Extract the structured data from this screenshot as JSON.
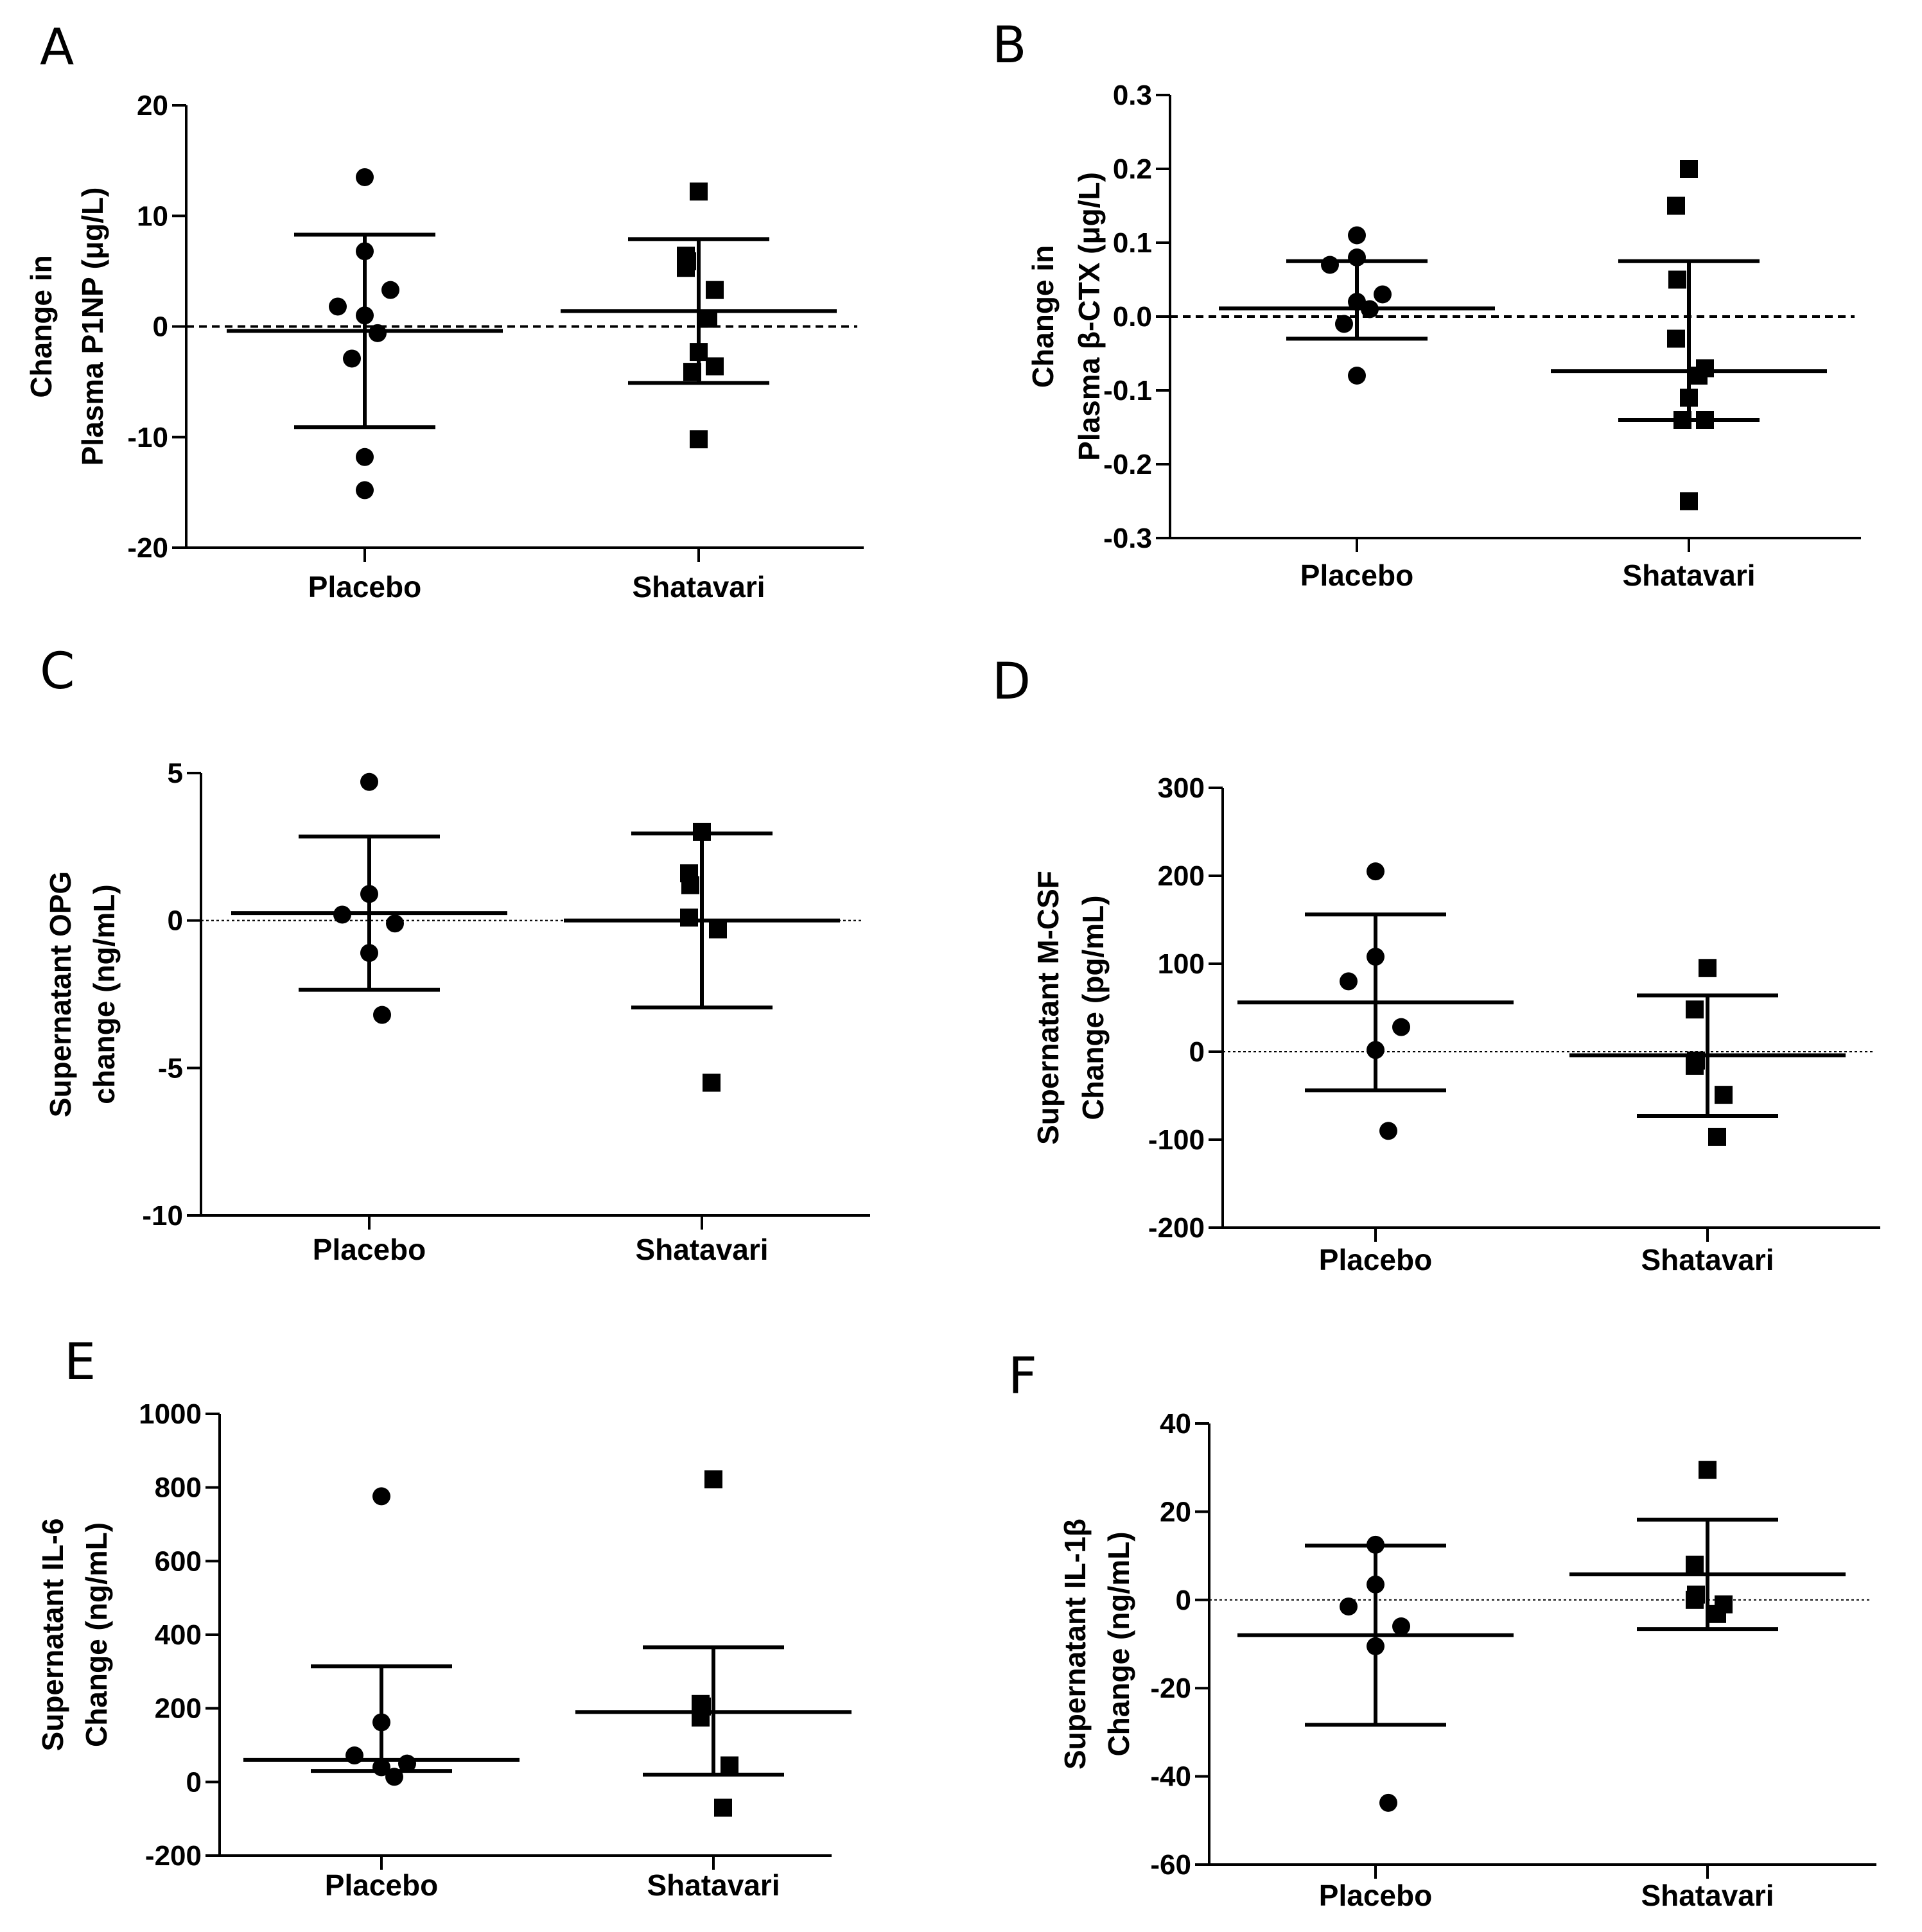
{
  "chart_data": [
    {
      "panel": "A",
      "type": "scatter",
      "ylabel_lines": [
        "Change in",
        "Plasma P1NP (μg/L)"
      ],
      "categories": [
        "Placebo",
        "Shatavari"
      ],
      "ylim": [
        -20,
        20
      ],
      "yticks": [
        -20,
        -10,
        0,
        10,
        20
      ],
      "ytick_labels": [
        "-20",
        "-10",
        "0",
        "10",
        "20"
      ],
      "zero_line": "thick-dashed",
      "series": [
        {
          "category": "Placebo",
          "marker": "circle",
          "values": [
            13.5,
            6.8,
            1.8,
            3.3,
            1.0,
            -0.6,
            -2.9,
            -11.8,
            -14.8
          ],
          "mean": -0.4,
          "error_upper": 8.3,
          "error_lower": -9.1
        },
        {
          "category": "Shatavari",
          "marker": "square",
          "values": [
            12.2,
            6.4,
            5.9,
            5.3,
            3.3,
            0.7,
            -2.3,
            -3.6,
            -4.1,
            -10.2
          ],
          "mean": 1.4,
          "error_upper": 7.9,
          "error_lower": -5.1
        }
      ]
    },
    {
      "panel": "B",
      "type": "scatter",
      "ylabel_lines": [
        "Change in",
        "Plasma β-CTX (μg/L)"
      ],
      "categories": [
        "Placebo",
        "Shatavari"
      ],
      "ylim": [
        -0.3,
        0.3
      ],
      "yticks": [
        -0.3,
        -0.2,
        -0.1,
        0.0,
        0.1,
        0.2,
        0.3
      ],
      "ytick_labels": [
        "-0.3",
        "-0.2",
        "-0.1",
        "0.0",
        "0.1",
        "0.2",
        "0.3"
      ],
      "zero_line": "thick-dashed",
      "series": [
        {
          "category": "Placebo",
          "marker": "circle",
          "values": [
            0.11,
            0.08,
            0.07,
            0.03,
            0.02,
            0.01,
            -0.01,
            -0.08
          ],
          "mean": 0.011,
          "error_upper": 0.075,
          "error_lower": -0.03
        },
        {
          "category": "Shatavari",
          "marker": "square",
          "values": [
            0.2,
            0.15,
            0.05,
            -0.03,
            -0.07,
            -0.08,
            -0.11,
            -0.14,
            -0.14,
            -0.25
          ],
          "mean": -0.074,
          "error_upper": 0.075,
          "error_lower": -0.14
        }
      ]
    },
    {
      "panel": "C",
      "type": "scatter",
      "ylabel_lines": [
        "Supernatant OPG",
        "change (ng/mL)"
      ],
      "categories": [
        "Placebo",
        "Shatavari"
      ],
      "ylim": [
        -10,
        5
      ],
      "yticks": [
        -10,
        -5,
        0,
        5
      ],
      "ytick_labels": [
        "-10",
        "-5",
        "0",
        "5"
      ],
      "zero_line": "thin-dotted",
      "series": [
        {
          "category": "Placebo",
          "marker": "circle",
          "values": [
            4.7,
            0.9,
            0.2,
            -0.1,
            -1.1,
            -3.2
          ],
          "mean": 0.25,
          "error_upper": 2.85,
          "error_lower": -2.35
        },
        {
          "category": "Shatavari",
          "marker": "square",
          "values": [
            3.0,
            1.6,
            1.2,
            0.1,
            -0.3,
            -5.5
          ],
          "mean": 0.0,
          "error_upper": 2.95,
          "error_lower": -2.95
        }
      ]
    },
    {
      "panel": "D",
      "type": "scatter",
      "ylabel_lines": [
        "Supernatant M-CSF",
        "Change (pg/mL)"
      ],
      "categories": [
        "Placebo",
        "Shatavari"
      ],
      "ylim": [
        -200,
        300
      ],
      "yticks": [
        -200,
        -100,
        0,
        100,
        200,
        300
      ],
      "ytick_labels": [
        "-200",
        "-100",
        "0",
        "100",
        "200",
        "300"
      ],
      "zero_line": "thin-dotted",
      "series": [
        {
          "category": "Placebo",
          "marker": "circle",
          "values": [
            205,
            108,
            80,
            28,
            2,
            -90
          ],
          "mean": 56,
          "error_upper": 156,
          "error_lower": -44
        },
        {
          "category": "Shatavari",
          "marker": "square",
          "values": [
            95,
            48,
            -10,
            -16,
            -49,
            -97
          ],
          "mean": -4,
          "error_upper": 64,
          "error_lower": -73
        }
      ]
    },
    {
      "panel": "E",
      "type": "scatter",
      "ylabel_lines": [
        "Supernatant IL-6",
        "Change (ng/mL)"
      ],
      "categories": [
        "Placebo",
        "Shatavari"
      ],
      "ylim": [
        -200,
        1000
      ],
      "yticks": [
        -200,
        0,
        200,
        400,
        600,
        800,
        1000
      ],
      "ytick_labels": [
        "-200",
        "0",
        "200",
        "400",
        "600",
        "800",
        "1000"
      ],
      "zero_line": "none",
      "series": [
        {
          "category": "Placebo",
          "marker": "circle",
          "values": [
            776,
            162,
            72,
            50,
            40,
            14
          ],
          "mean": 60,
          "error_upper": 314,
          "error_lower": 30
        },
        {
          "category": "Shatavari",
          "marker": "square",
          "values": [
            822,
            212,
            205,
            175,
            45,
            -70
          ],
          "mean": 190,
          "error_upper": 366,
          "error_lower": 20
        }
      ]
    },
    {
      "panel": "F",
      "type": "scatter",
      "ylabel_lines": [
        "Supernatant IL-1β",
        "Change (ng/mL)"
      ],
      "categories": [
        "Placebo",
        "Shatavari"
      ],
      "ylim": [
        -60,
        40
      ],
      "yticks": [
        -60,
        -40,
        -20,
        0,
        20,
        40
      ],
      "ytick_labels": [
        "-60",
        "-40",
        "-20",
        "0",
        "20",
        "40"
      ],
      "zero_line": "thin-dotted",
      "series": [
        {
          "category": "Placebo",
          "marker": "circle",
          "values": [
            12.5,
            3.5,
            -1.5,
            -6.0,
            -10.5,
            -46.0
          ],
          "mean": -8,
          "error_upper": 12.3,
          "error_lower": -28.3
        },
        {
          "category": "Shatavari",
          "marker": "square",
          "values": [
            29.5,
            8.0,
            1.2,
            0.0,
            -1.0,
            -3.2
          ],
          "mean": 5.8,
          "error_upper": 18.2,
          "error_lower": -6.6
        }
      ]
    }
  ]
}
